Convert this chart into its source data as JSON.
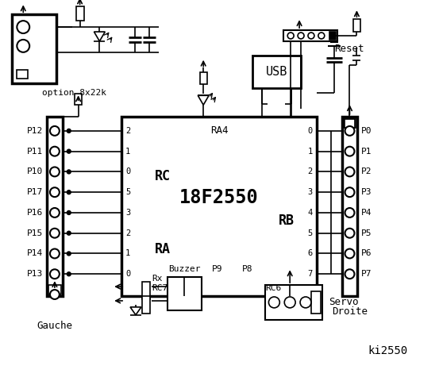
{
  "title": "ki2550",
  "bg_color": "#ffffff",
  "line_color": "#000000",
  "chip_label": "18F2550",
  "chip_sub": "RA4",
  "rc_label": "RC",
  "ra_label": "RA",
  "rb_label": "RB",
  "rc_pins": [
    "2",
    "1",
    "0",
    "5",
    "3",
    "2",
    "1",
    "0"
  ],
  "rb_pins": [
    "0",
    "1",
    "2",
    "3",
    "4",
    "5",
    "6",
    "7"
  ],
  "left_labels": [
    "P12",
    "P11",
    "P10",
    "P17",
    "P16",
    "P15",
    "P14",
    "P13"
  ],
  "right_labels": [
    "P0",
    "P1",
    "P2",
    "P3",
    "P4",
    "P5",
    "P6",
    "P7"
  ],
  "option_text": "option 8x22k",
  "rx_text": "Rx",
  "rc7_text": "RC7",
  "rc6_text": "RC6",
  "droite_text": "Droite",
  "reset_text": "Reset",
  "usb_text": "USB",
  "gauche_text": "Gauche",
  "buzzer_text": "Buzzer",
  "servo_text": "Servo",
  "p9_text": "P9",
  "p8_text": "P8"
}
